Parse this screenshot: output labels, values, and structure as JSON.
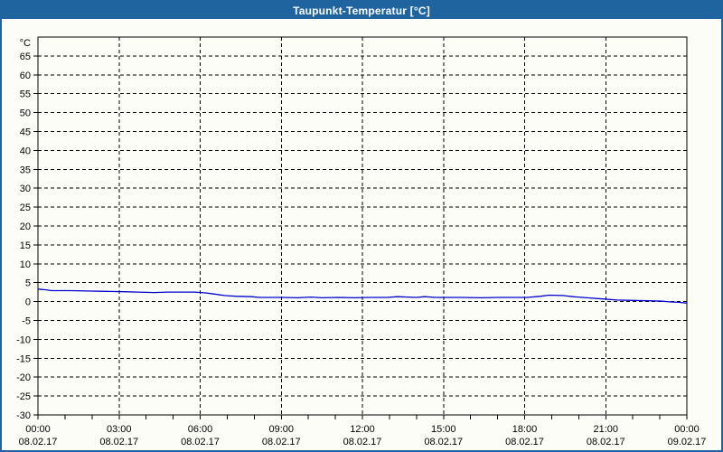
{
  "window": {
    "title": "Taupunkt-Temperatur [°C]",
    "title_bar_color": "#1f649e",
    "border_color": "#1f649e",
    "background_color": "#fdfdf8"
  },
  "chart_data": {
    "type": "line",
    "title": "Taupunkt-Temperatur [°C]",
    "y_unit_label": "°C",
    "ylim": [
      -30,
      70
    ],
    "y_tick_step": 5,
    "y_label_min": -30,
    "y_label_max": 65,
    "x_hours_range": [
      0,
      24
    ],
    "x_gridline_hours": [
      3,
      6,
      9,
      12,
      15,
      18,
      21
    ],
    "x_minor_tick_step_hours": 1,
    "grid": "dashed-black",
    "legend": "none",
    "line_color": "#0000cd",
    "x_axis_labels": [
      {
        "hour": 0,
        "time": "00:00",
        "date": "08.02.17"
      },
      {
        "hour": 3,
        "time": "03:00",
        "date": "08.02.17"
      },
      {
        "hour": 6,
        "time": "06:00",
        "date": "08.02.17"
      },
      {
        "hour": 9,
        "time": "09:00",
        "date": "08.02.17"
      },
      {
        "hour": 12,
        "time": "12:00",
        "date": "08.02.17"
      },
      {
        "hour": 15,
        "time": "15:00",
        "date": "08.02.17"
      },
      {
        "hour": 18,
        "time": "18:00",
        "date": "08.02.17"
      },
      {
        "hour": 21,
        "time": "21:00",
        "date": "08.02.17"
      },
      {
        "hour": 24,
        "time": "00:00",
        "date": "09.02.17"
      }
    ],
    "series": [
      {
        "name": "Taupunkt-Temperatur",
        "points": [
          [
            0.0,
            3.3
          ],
          [
            0.3,
            3.1
          ],
          [
            0.5,
            2.9
          ],
          [
            1.2,
            2.9
          ],
          [
            1.8,
            2.8
          ],
          [
            2.5,
            2.7
          ],
          [
            3.2,
            2.6
          ],
          [
            3.7,
            2.5
          ],
          [
            4.3,
            2.4
          ],
          [
            4.8,
            2.5
          ],
          [
            5.8,
            2.5
          ],
          [
            6.2,
            2.3
          ],
          [
            6.5,
            2.0
          ],
          [
            6.9,
            1.6
          ],
          [
            7.3,
            1.4
          ],
          [
            7.9,
            1.3
          ],
          [
            8.2,
            1.1
          ],
          [
            9.0,
            1.1
          ],
          [
            9.6,
            1.0
          ],
          [
            10.1,
            1.2
          ],
          [
            10.5,
            1.0
          ],
          [
            11.1,
            1.1
          ],
          [
            11.7,
            1.0
          ],
          [
            12.3,
            1.1
          ],
          [
            12.9,
            1.1
          ],
          [
            13.3,
            1.3
          ],
          [
            14.0,
            1.1
          ],
          [
            14.3,
            1.3
          ],
          [
            14.7,
            1.1
          ],
          [
            15.6,
            1.1
          ],
          [
            16.4,
            1.0
          ],
          [
            17.1,
            1.1
          ],
          [
            18.1,
            1.1
          ],
          [
            18.6,
            1.4
          ],
          [
            18.9,
            1.7
          ],
          [
            19.4,
            1.6
          ],
          [
            19.8,
            1.3
          ],
          [
            20.3,
            1.0
          ],
          [
            20.9,
            0.7
          ],
          [
            21.4,
            0.4
          ],
          [
            22.0,
            0.3
          ],
          [
            22.7,
            0.2
          ],
          [
            23.1,
            0.1
          ],
          [
            23.4,
            -0.1
          ],
          [
            23.7,
            -0.2
          ],
          [
            24.0,
            -0.4
          ]
        ]
      }
    ]
  }
}
